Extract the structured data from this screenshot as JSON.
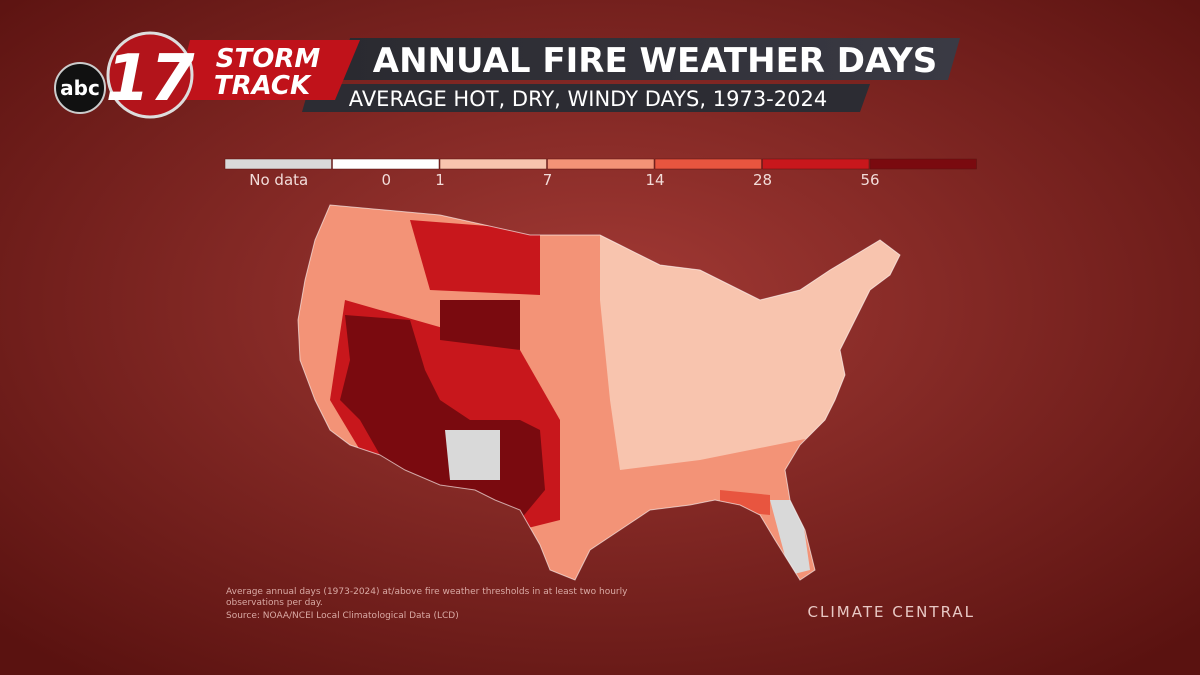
{
  "logo": {
    "network": "abc",
    "channel": "17",
    "brand_line1": "STORM",
    "brand_line2": "TRACK"
  },
  "header": {
    "title": "ANNUAL FIRE WEATHER DAYS",
    "subtitle": "AVERAGE HOT, DRY, WINDY DAYS, 1973-2024"
  },
  "legend": {
    "no_data_label": "No data",
    "colors": [
      "#d9d9d9",
      "#ffffff",
      "#f8c4ae",
      "#f39377",
      "#e8553f",
      "#c8171c",
      "#7a0a0f"
    ],
    "breaks": [
      0,
      1,
      7,
      14,
      28,
      56
    ]
  },
  "footnote": {
    "line1": "Average annual days (1973-2024) at/above fire weather thresholds in at least two hourly",
    "line2": "observations per day.",
    "source": "Source: NOAA/NCEI Local Climatological Data (LCD)"
  },
  "credit": "CLIMATE CENTRAL"
}
